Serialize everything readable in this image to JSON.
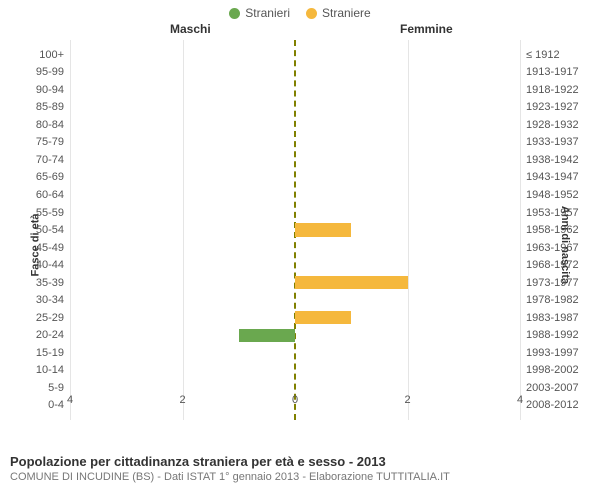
{
  "legend": {
    "male": {
      "label": "Stranieri",
      "color": "#6aa84f"
    },
    "female": {
      "label": "Straniere",
      "color": "#f5b83d"
    }
  },
  "column_headers": {
    "left": "Maschi",
    "right": "Femmine"
  },
  "axis": {
    "left_title": "Fasce di età",
    "right_title": "Anni di nascita",
    "xmax": 4,
    "xticks_left": [
      4,
      2,
      0
    ],
    "xticks_right": [
      2,
      4
    ],
    "grid_color": "#e5e5e5",
    "center_dash_color": "#808000"
  },
  "rows": [
    {
      "age": "100+",
      "birth": "≤ 1912",
      "m": 0,
      "f": 0
    },
    {
      "age": "95-99",
      "birth": "1913-1917",
      "m": 0,
      "f": 0
    },
    {
      "age": "90-94",
      "birth": "1918-1922",
      "m": 0,
      "f": 0
    },
    {
      "age": "85-89",
      "birth": "1923-1927",
      "m": 0,
      "f": 0
    },
    {
      "age": "80-84",
      "birth": "1928-1932",
      "m": 0,
      "f": 0
    },
    {
      "age": "75-79",
      "birth": "1933-1937",
      "m": 0,
      "f": 0
    },
    {
      "age": "70-74",
      "birth": "1938-1942",
      "m": 0,
      "f": 0
    },
    {
      "age": "65-69",
      "birth": "1943-1947",
      "m": 0,
      "f": 0
    },
    {
      "age": "60-64",
      "birth": "1948-1952",
      "m": 0,
      "f": 0
    },
    {
      "age": "55-59",
      "birth": "1953-1957",
      "m": 0,
      "f": 0
    },
    {
      "age": "50-54",
      "birth": "1958-1962",
      "m": 0,
      "f": 1
    },
    {
      "age": "45-49",
      "birth": "1963-1967",
      "m": 0,
      "f": 0
    },
    {
      "age": "40-44",
      "birth": "1968-1972",
      "m": 0,
      "f": 0
    },
    {
      "age": "35-39",
      "birth": "1973-1977",
      "m": 0,
      "f": 2
    },
    {
      "age": "30-34",
      "birth": "1978-1982",
      "m": 0,
      "f": 0
    },
    {
      "age": "25-29",
      "birth": "1983-1987",
      "m": 0,
      "f": 1
    },
    {
      "age": "20-24",
      "birth": "1988-1992",
      "m": 1,
      "f": 0
    },
    {
      "age": "15-19",
      "birth": "1993-1997",
      "m": 0,
      "f": 0
    },
    {
      "age": "10-14",
      "birth": "1998-2002",
      "m": 0,
      "f": 0
    },
    {
      "age": "5-9",
      "birth": "2003-2007",
      "m": 0,
      "f": 0
    },
    {
      "age": "0-4",
      "birth": "2008-2012",
      "m": 0,
      "f": 0
    }
  ],
  "footer": {
    "title": "Popolazione per cittadinanza straniera per età e sesso - 2013",
    "subtitle": "COMUNE DI INCUDINE (BS) - Dati ISTAT 1° gennaio 2013 - Elaborazione TUTTITALIA.IT"
  }
}
